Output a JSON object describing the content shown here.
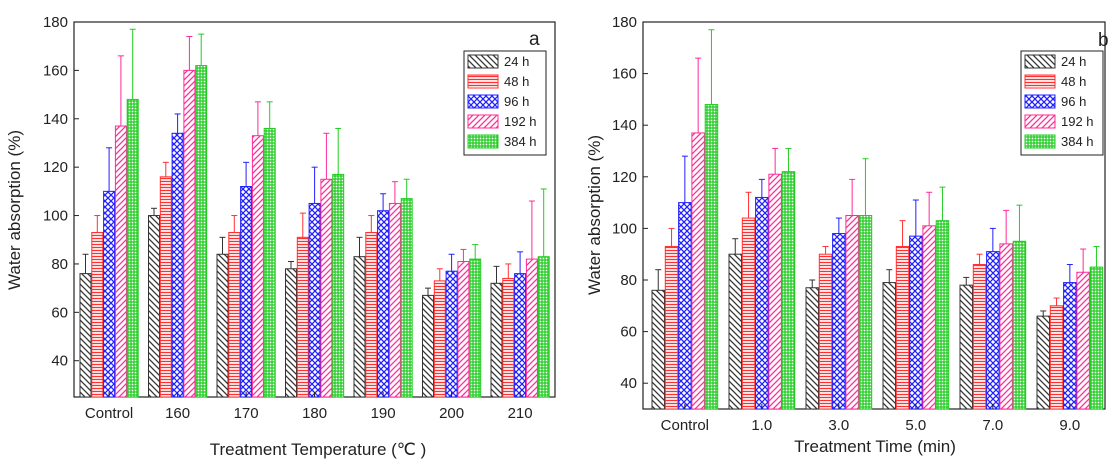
{
  "chart_data": [
    {
      "panel": "a",
      "type": "bar",
      "xlabel": "Treatment Temperature (℃ )",
      "ylabel": "Water absorption (%)",
      "ylim": [
        25,
        180
      ],
      "yticks": [
        40,
        60,
        80,
        100,
        120,
        140,
        160,
        180
      ],
      "categories": [
        "Control",
        "160",
        "170",
        "180",
        "190",
        "200",
        "210"
      ],
      "legend": "top-right",
      "series": [
        {
          "name": "24 h",
          "color": "#333333",
          "pattern": "diag-back",
          "values": [
            76,
            100,
            84,
            78,
            83,
            67,
            72
          ],
          "errors": [
            8,
            3,
            7,
            3,
            8,
            3,
            7
          ]
        },
        {
          "name": "48 h",
          "color": "#ff3030",
          "pattern": "horizontal",
          "values": [
            93,
            116,
            93,
            91,
            93,
            73,
            74
          ],
          "errors": [
            7,
            6,
            7,
            10,
            7,
            5,
            6
          ]
        },
        {
          "name": "96 h",
          "color": "#2020ff",
          "pattern": "cross",
          "values": [
            110,
            134,
            112,
            105,
            102,
            77,
            76
          ],
          "errors": [
            18,
            8,
            10,
            15,
            7,
            7,
            9
          ]
        },
        {
          "name": "192 h",
          "color": "#ff2a9a",
          "pattern": "diag-fwd",
          "values": [
            137,
            160,
            133,
            115,
            105,
            81,
            82
          ],
          "errors": [
            29,
            14,
            14,
            19,
            9,
            5,
            24
          ]
        },
        {
          "name": "384 h",
          "color": "#22cc22",
          "pattern": "grid",
          "values": [
            148,
            162,
            136,
            117,
            107,
            82,
            83
          ],
          "errors": [
            29,
            13,
            11,
            19,
            8,
            6,
            28
          ]
        }
      ]
    },
    {
      "panel": "b",
      "type": "bar",
      "xlabel": "Treatment Time (min)",
      "ylabel": "Water absorption (%)",
      "ylim": [
        30,
        180
      ],
      "yticks": [
        40,
        60,
        80,
        100,
        120,
        140,
        160,
        180
      ],
      "categories": [
        "Control",
        "1.0",
        "3.0",
        "5.0",
        "7.0",
        "9.0"
      ],
      "legend": "top-right",
      "series": [
        {
          "name": "24 h",
          "color": "#333333",
          "pattern": "diag-back",
          "values": [
            76,
            90,
            77,
            79,
            78,
            66
          ],
          "errors": [
            8,
            6,
            3,
            5,
            3,
            2
          ]
        },
        {
          "name": "48 h",
          "color": "#ff3030",
          "pattern": "horizontal",
          "values": [
            93,
            104,
            90,
            93,
            86,
            70
          ],
          "errors": [
            7,
            10,
            3,
            10,
            4,
            3
          ]
        },
        {
          "name": "96 h",
          "color": "#2020ff",
          "pattern": "cross",
          "values": [
            110,
            112,
            98,
            97,
            91,
            79
          ],
          "errors": [
            18,
            7,
            6,
            14,
            9,
            7
          ]
        },
        {
          "name": "192 h",
          "color": "#ff2a9a",
          "pattern": "diag-fwd",
          "values": [
            137,
            121,
            105,
            101,
            94,
            83
          ],
          "errors": [
            29,
            10,
            14,
            13,
            13,
            9
          ]
        },
        {
          "name": "384 h",
          "color": "#22cc22",
          "pattern": "grid",
          "values": [
            148,
            122,
            105,
            103,
            95,
            85
          ],
          "errors": [
            29,
            9,
            22,
            13,
            14,
            8
          ]
        }
      ]
    }
  ]
}
